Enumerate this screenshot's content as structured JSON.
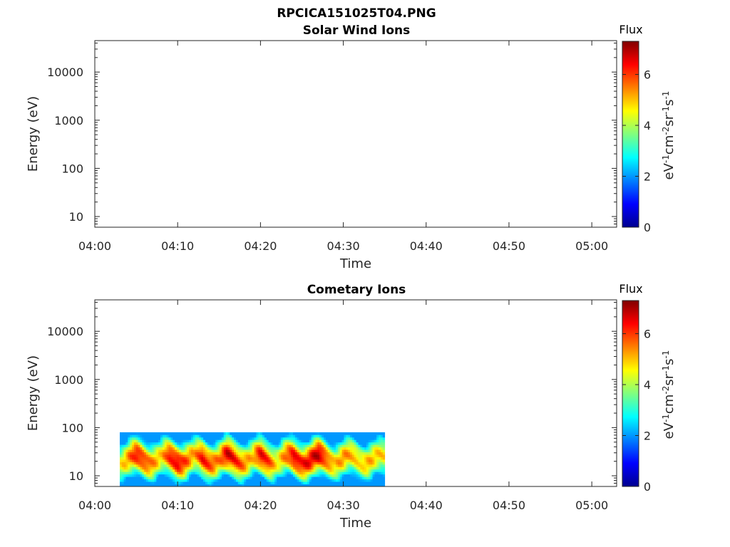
{
  "figure": {
    "title": "RPCICA151025T04.PNG"
  },
  "chart_data": [
    {
      "type": "heatmap",
      "title": "Solar Wind Ions",
      "xlabel": "Time",
      "ylabel": "Energy (eV)",
      "xlim": [
        "04:00",
        "05:03"
      ],
      "ylim": [
        6,
        45000
      ],
      "y_scale": "log",
      "x_ticks": [
        "04:00",
        "04:10",
        "04:20",
        "04:30",
        "04:40",
        "04:50",
        "05:00"
      ],
      "y_ticks": [
        "10",
        "100",
        "1000",
        "10000"
      ],
      "colorbar": {
        "title": "Flux",
        "label": "eV-1cm-2sr-1s-1",
        "range": [
          0,
          7.3
        ],
        "ticks": [
          "0",
          "2",
          "4",
          "6"
        ],
        "colormap": "jet"
      },
      "data": []
    },
    {
      "type": "heatmap",
      "title": "Cometary Ions",
      "xlabel": "Time",
      "ylabel": "Energy (eV)",
      "xlim": [
        "04:00",
        "05:03"
      ],
      "ylim": [
        6,
        45000
      ],
      "y_scale": "log",
      "x_ticks": [
        "04:00",
        "04:10",
        "04:20",
        "04:30",
        "04:40",
        "04:50",
        "05:00"
      ],
      "y_ticks": [
        "10",
        "100",
        "1000",
        "10000"
      ],
      "colorbar": {
        "title": "Flux",
        "label": "eV-1cm-2sr-1s-1",
        "range": [
          0,
          7.3
        ],
        "ticks": [
          "0",
          "2",
          "4",
          "6"
        ],
        "colormap": "jet"
      },
      "data_extent": {
        "time": [
          "04:03",
          "04:35"
        ],
        "energy": [
          6,
          80
        ]
      },
      "peak_flux_profile": [
        [
          "04:03",
          4.5
        ],
        [
          "04:05",
          6.4
        ],
        [
          "04:06",
          6.0
        ],
        [
          "04:08",
          4.9
        ],
        [
          "04:09",
          6.3
        ],
        [
          "04:10",
          6.6
        ],
        [
          "04:12",
          5.2
        ],
        [
          "04:13",
          6.4
        ],
        [
          "04:15",
          5.5
        ],
        [
          "04:16",
          6.8
        ],
        [
          "04:17",
          6.2
        ],
        [
          "04:19",
          5.0
        ],
        [
          "04:20",
          6.6
        ],
        [
          "04:21",
          6.0
        ],
        [
          "04:22",
          4.6
        ],
        [
          "04:24",
          6.6
        ],
        [
          "04:25",
          6.3
        ],
        [
          "04:27",
          6.9
        ],
        [
          "04:28",
          5.8
        ],
        [
          "04:29",
          5.0
        ],
        [
          "04:30",
          5.5
        ],
        [
          "04:32",
          4.8
        ],
        [
          "04:33",
          5.2
        ],
        [
          "04:35",
          4.8
        ]
      ]
    }
  ]
}
